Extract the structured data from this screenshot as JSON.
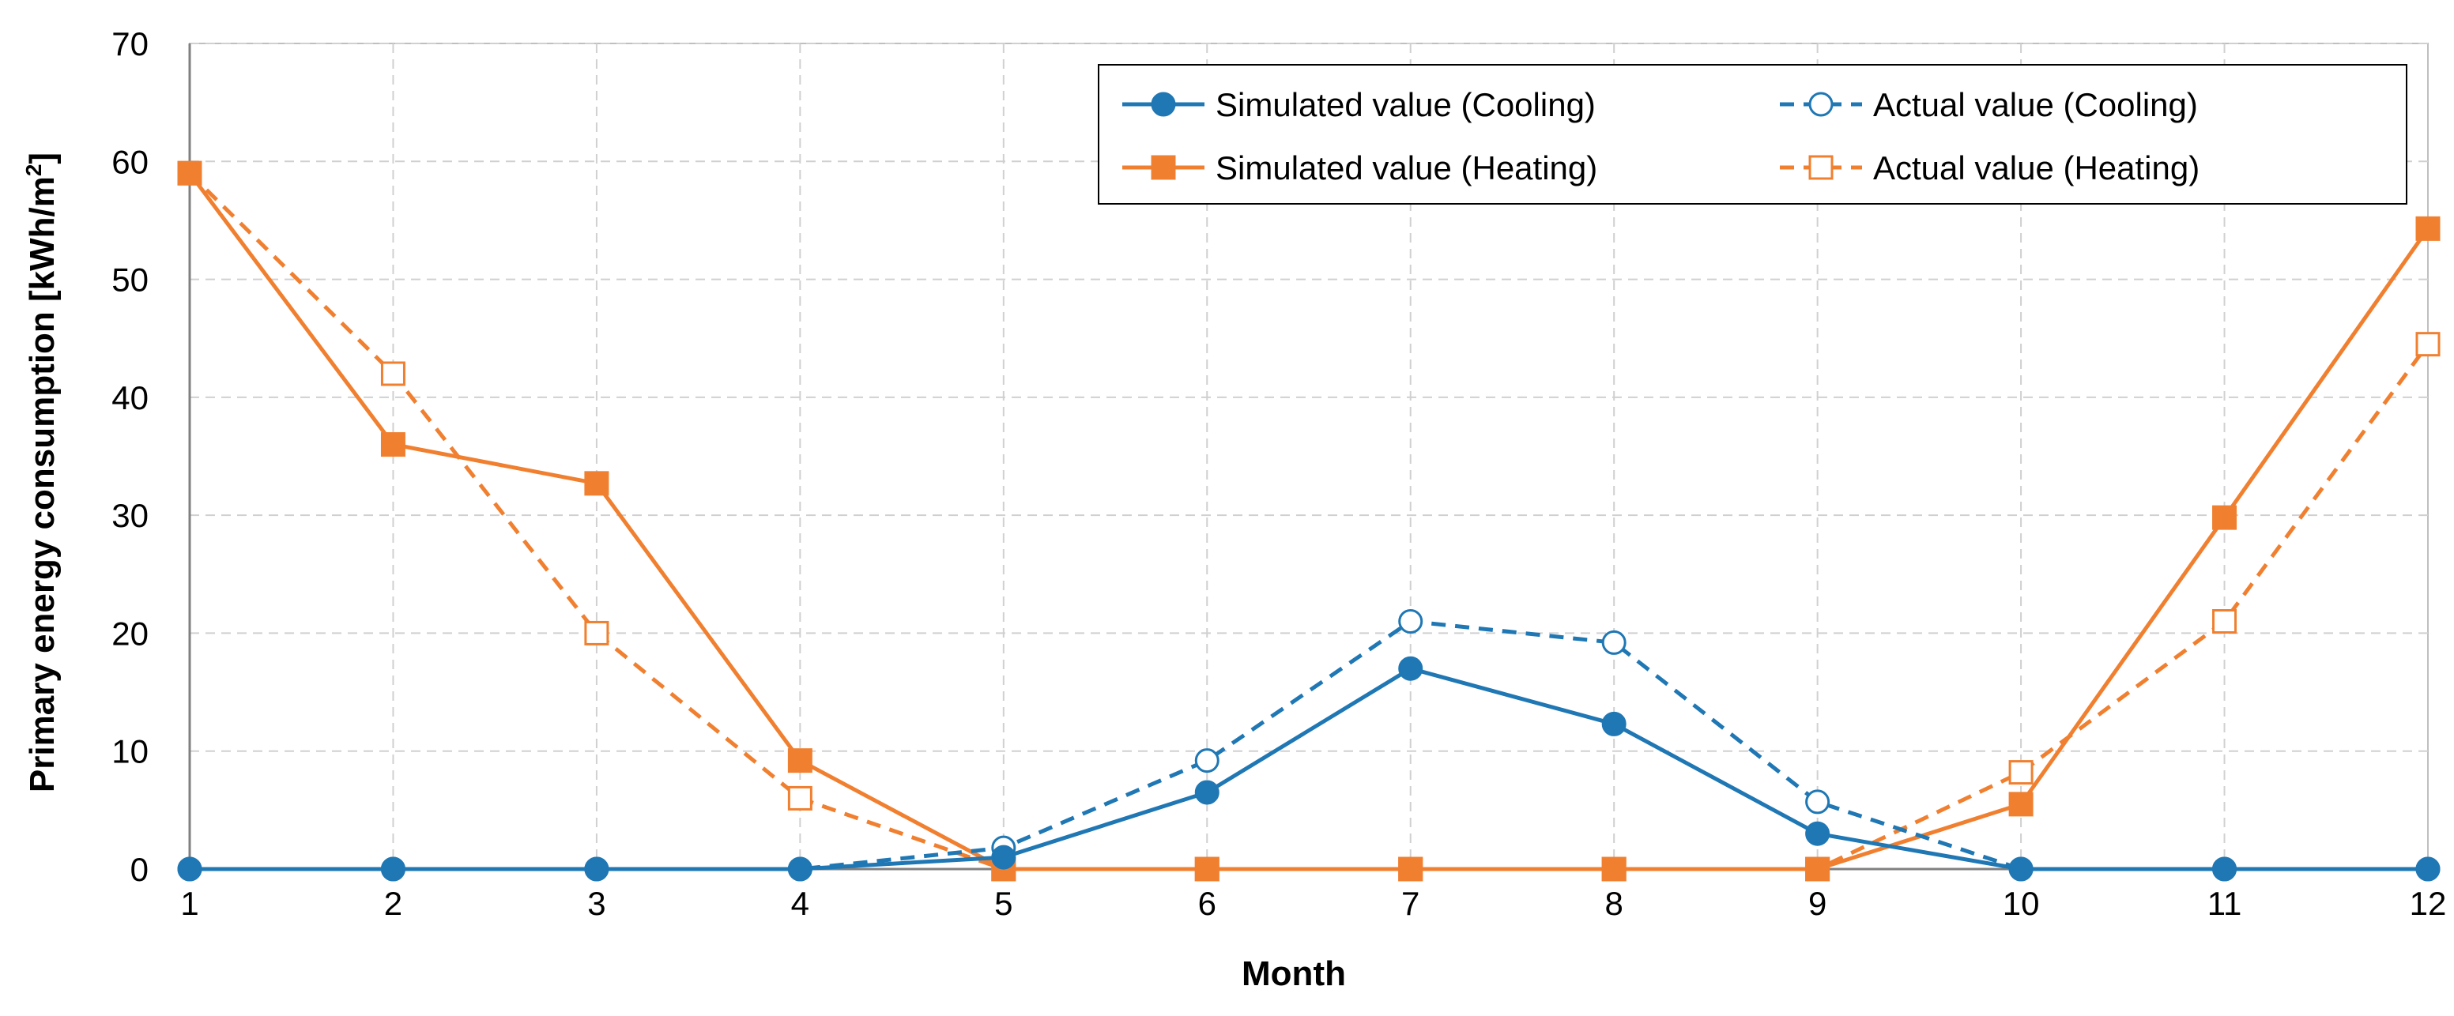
{
  "chart_data": {
    "type": "line",
    "title": "",
    "xlabel": "Month",
    "ylabel": "Primary energy consumption [kWh/m²]",
    "ylabel_text": "Primary energy consumption [kWh/m",
    "ylabel_sup": "2",
    "ylabel_end": "]",
    "xlim": [
      1,
      12
    ],
    "ylim": [
      0,
      70
    ],
    "x_ticks": [
      1,
      2,
      3,
      4,
      5,
      6,
      7,
      8,
      9,
      10,
      11,
      12
    ],
    "y_ticks": [
      0,
      10,
      20,
      30,
      40,
      50,
      60,
      70
    ],
    "grid": true,
    "legend_position": "top-right",
    "series": [
      {
        "name": "Simulated value (Cooling)",
        "color": "#1f77b4",
        "line_style": "solid",
        "marker": "circle-filled",
        "x": [
          1,
          2,
          3,
          4,
          5,
          6,
          7,
          8,
          9,
          10,
          11,
          12
        ],
        "values": [
          0,
          0,
          0,
          0,
          1,
          6.5,
          17,
          12.3,
          3,
          0,
          0,
          0
        ]
      },
      {
        "name": "Actual value (Cooling)",
        "color": "#1f77b4",
        "line_style": "dashed",
        "marker": "circle-open",
        "x": [
          1,
          2,
          3,
          4,
          5,
          6,
          7,
          8,
          9,
          10,
          11,
          12
        ],
        "values": [
          0,
          0,
          0,
          0,
          1.8,
          9.2,
          21,
          19.2,
          5.7,
          0,
          0,
          0
        ]
      },
      {
        "name": "Simulated value (Heating)",
        "color": "#f08030",
        "line_style": "solid",
        "marker": "square-filled",
        "x": [
          1,
          2,
          3,
          4,
          5,
          6,
          7,
          8,
          9,
          10,
          11,
          12
        ],
        "values": [
          59,
          36,
          32.7,
          9.2,
          0,
          0,
          0,
          0,
          0,
          5.5,
          29.8,
          54.3
        ]
      },
      {
        "name": "Actual value (Heating)",
        "color": "#f08030",
        "line_style": "dashed",
        "marker": "square-open",
        "x": [
          1,
          2,
          3,
          4,
          5,
          6,
          7,
          8,
          9,
          10,
          11,
          12
        ],
        "values": [
          59,
          42,
          20,
          6,
          0,
          0,
          0,
          0,
          0,
          8.2,
          21,
          44.5
        ]
      }
    ],
    "legend_order": [
      0,
      1,
      2,
      3
    ]
  }
}
